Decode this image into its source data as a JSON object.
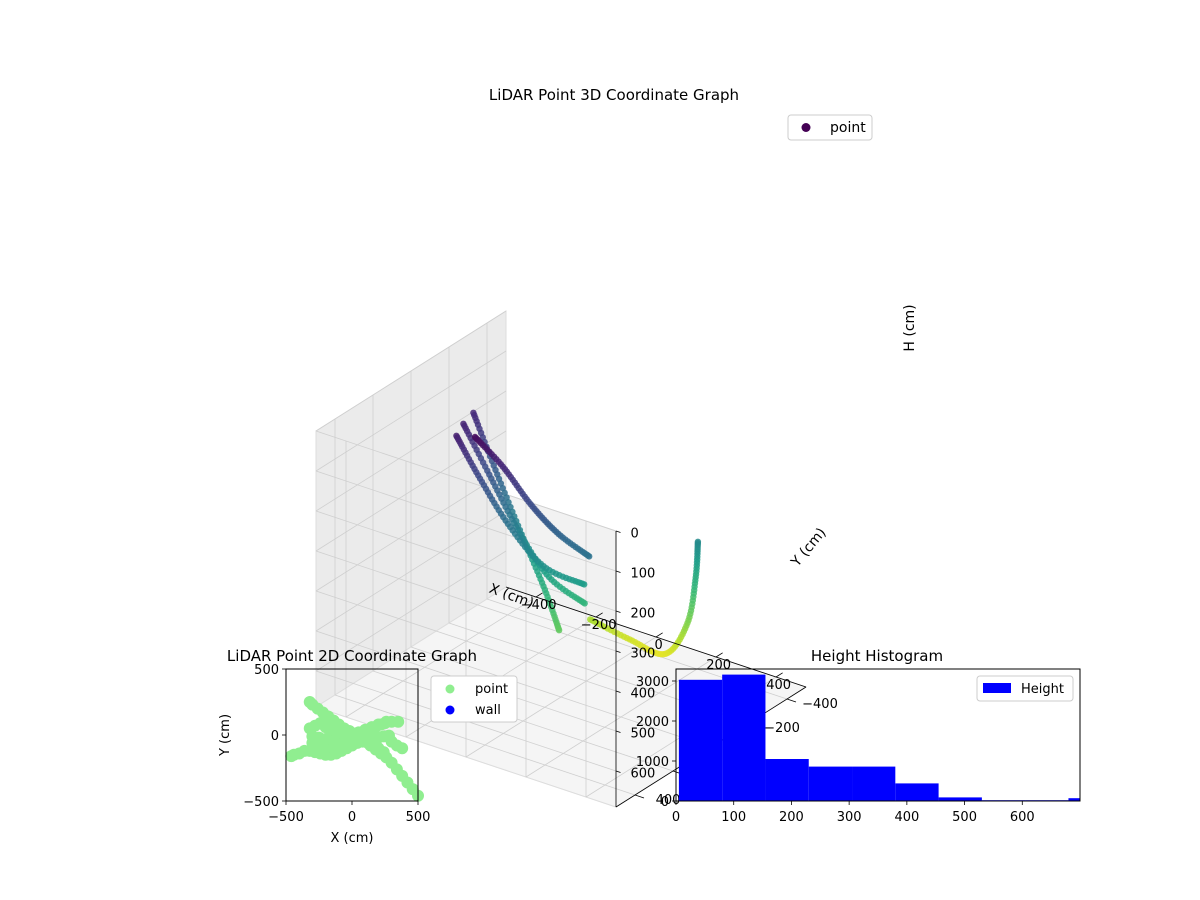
{
  "chart_data": [
    {
      "type": "scatter",
      "projection": "3d",
      "title": "LiDAR Point 3D Coordinate Graph",
      "xlabel": "X (cm)",
      "ylabel": "Y (cm)",
      "zlabel": "H (cm)",
      "xlim": [
        -500,
        500
      ],
      "ylim": [
        -500,
        500
      ],
      "zlim": [
        0,
        690
      ],
      "z_inverted": true,
      "x_ticks": [
        "−400",
        "−200",
        "0",
        "200",
        "400"
      ],
      "y_ticks": [
        "−400",
        "−200",
        "0",
        "200",
        "400"
      ],
      "z_ticks": [
        "0",
        "100",
        "200",
        "300",
        "400",
        "500",
        "600"
      ],
      "colormap": "viridis",
      "legend": {
        "position": "top-right",
        "entries": [
          {
            "label": "point",
            "color": "#440154"
          }
        ]
      },
      "grid": true,
      "series": [
        {
          "name": "point",
          "description_curves": [
            {
              "points": [
                [
                  -330,
                  -60,
                  80
                ],
                [
                  -250,
                  -50,
                  200
                ],
                [
                  -150,
                  -30,
                  330
                ],
                [
                  -60,
                  -10,
                  440
                ],
                [
                  0,
                  10,
                  520
                ]
              ]
            },
            {
              "points": [
                [
                  -300,
                  40,
                  70
                ],
                [
                  -220,
                  30,
                  180
                ],
                [
                  -130,
                  20,
                  300
                ],
                [
                  -40,
                  0,
                  400
                ],
                [
                  60,
                  -30,
                  450
                ]
              ]
            },
            {
              "points": [
                [
                  -260,
                  140,
                  60
                ],
                [
                  -200,
                  120,
                  150
                ],
                [
                  -120,
                  90,
                  260
                ],
                [
                  -20,
                  60,
                  350
                ],
                [
                  90,
                  20,
                  380
                ]
              ]
            },
            {
              "points": [
                [
                  -80,
                  -280,
                  600
                ],
                [
                  20,
                  -330,
                  640
                ],
                [
                  120,
                  -360,
                  660
                ],
                [
                  200,
                  -350,
                  560
                ],
                [
                  240,
                  -330,
                  430
                ],
                [
                  260,
                  -310,
                  330
                ]
              ]
            },
            {
              "points": [
                [
                  -160,
                  200,
                  20
                ],
                [
                  -80,
                  180,
                  80
                ],
                [
                  0,
                  160,
                  160
                ],
                [
                  80,
                  140,
                  220
                ],
                [
                  170,
                  120,
                  260
                ]
              ]
            }
          ]
        }
      ]
    },
    {
      "type": "scatter",
      "title": "LiDAR Point 2D Coordinate Graph",
      "xlabel": "X (cm)",
      "ylabel": "Y (cm)",
      "xlim": [
        -500,
        500
      ],
      "ylim": [
        -500,
        500
      ],
      "x_ticks": [
        "−500",
        "0",
        "500"
      ],
      "y_ticks": [
        "−500",
        "0",
        "500"
      ],
      "legend": {
        "position": "outside-right",
        "entries": [
          {
            "label": "point",
            "color": "#90ee90"
          },
          {
            "label": "wall",
            "color": "#0000ff"
          }
        ]
      },
      "series": [
        {
          "name": "point",
          "color": "#90ee90",
          "x": [
            -320,
            -300,
            -260,
            -220,
            -180,
            -140,
            -100,
            -60,
            -20,
            20,
            60,
            100,
            140,
            180,
            220,
            260,
            300,
            340,
            380,
            420,
            460,
            500,
            -300,
            -250,
            -200,
            -150,
            -100,
            -50,
            0,
            50,
            100,
            150,
            200,
            250,
            300,
            350,
            -320,
            -280,
            -240,
            -200,
            -160,
            -120,
            -80,
            -40,
            0,
            40,
            80,
            120,
            160,
            200,
            240,
            280,
            -300,
            -260,
            -220,
            -180,
            -140,
            -100,
            -60,
            -20,
            20,
            60,
            100,
            140,
            180,
            220,
            260,
            300,
            340,
            380,
            -320,
            -280,
            -240,
            -200,
            -160,
            -120,
            -80,
            -40,
            0,
            40,
            80,
            120,
            160,
            200,
            240,
            -460,
            -440,
            -400,
            -360
          ],
          "y": [
            250,
            230,
            200,
            170,
            140,
            110,
            80,
            50,
            30,
            10,
            -20,
            -50,
            -80,
            -110,
            -140,
            -170,
            -210,
            -260,
            -310,
            -360,
            -410,
            -460,
            -10,
            -20,
            -30,
            -20,
            -10,
            0,
            10,
            20,
            40,
            60,
            80,
            90,
            100,
            100,
            -120,
            -130,
            -140,
            -150,
            -150,
            -140,
            -120,
            -100,
            -80,
            -60,
            -50,
            -40,
            -30,
            -20,
            -10,
            -5,
            -60,
            -70,
            -80,
            -90,
            -100,
            -80,
            -60,
            -40,
            -20,
            0,
            20,
            40,
            60,
            80,
            100,
            -50,
            -80,
            -100,
            50,
            70,
            90,
            60,
            40,
            30,
            20,
            10,
            0,
            -20,
            -40,
            -60,
            -80,
            -100,
            -130,
            -160,
            -150,
            -140,
            -120
          ]
        },
        {
          "name": "wall",
          "color": "#0000ff",
          "x": [],
          "y": []
        }
      ]
    },
    {
      "type": "bar",
      "title": "Height Histogram",
      "xlabel": "",
      "ylabel": "",
      "xlim": [
        0,
        700
      ],
      "ylim": [
        0,
        3300
      ],
      "x_ticks": [
        "0",
        "100",
        "200",
        "300",
        "400",
        "500",
        "600"
      ],
      "y_ticks": [
        "0",
        "1000",
        "2000",
        "3000"
      ],
      "legend": {
        "position": "top-right",
        "entries": [
          {
            "label": "Height",
            "color": "#0000ff"
          }
        ]
      },
      "series": [
        {
          "name": "Height",
          "color": "#0000ff",
          "bins": [
            [
              5,
              80
            ],
            [
              80,
              155
            ],
            [
              155,
              230
            ],
            [
              230,
              305
            ],
            [
              305,
              380
            ],
            [
              380,
              455
            ],
            [
              455,
              530
            ],
            [
              530,
              605
            ],
            [
              605,
              680
            ],
            [
              680,
              700
            ]
          ],
          "values": [
            3030,
            3160,
            1050,
            860,
            860,
            440,
            90,
            20,
            20,
            70
          ]
        }
      ]
    }
  ]
}
